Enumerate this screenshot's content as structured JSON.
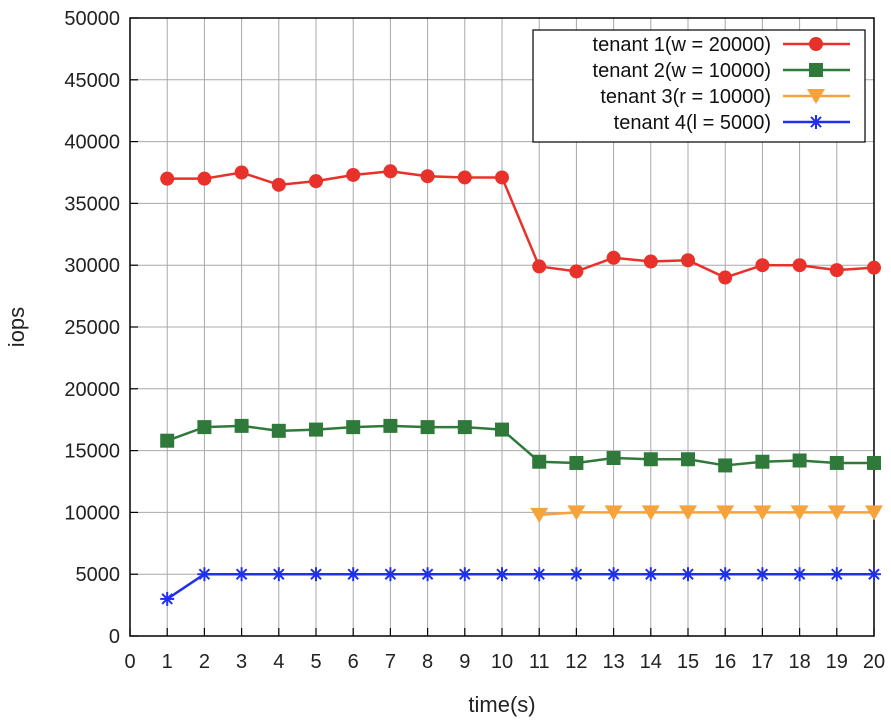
{
  "chart_data": {
    "type": "line",
    "title": "",
    "xlabel": "time(s)",
    "ylabel": "iops",
    "xlim": [
      0,
      20
    ],
    "ylim": [
      0,
      50000
    ],
    "xticks": [
      0,
      1,
      2,
      3,
      4,
      5,
      6,
      7,
      8,
      9,
      10,
      11,
      12,
      13,
      14,
      15,
      16,
      17,
      18,
      19,
      20
    ],
    "yticks": [
      0,
      5000,
      10000,
      15000,
      20000,
      25000,
      30000,
      35000,
      40000,
      45000,
      50000
    ],
    "grid": true,
    "legend_position": "top-right",
    "series": [
      {
        "name": "tenant 1(w = 20000)",
        "color": "#e8312a",
        "marker": "circle",
        "x": [
          1,
          2,
          3,
          4,
          5,
          6,
          7,
          8,
          9,
          10,
          11,
          12,
          13,
          14,
          15,
          16,
          17,
          18,
          19,
          20
        ],
        "values": [
          37000,
          37000,
          37500,
          36500,
          36800,
          37300,
          37600,
          37200,
          37100,
          37100,
          29900,
          29500,
          30600,
          30300,
          30400,
          29000,
          30000,
          30000,
          29600,
          29800
        ]
      },
      {
        "name": "tenant 2(w = 10000)",
        "color": "#2f7a3a",
        "marker": "square",
        "x": [
          1,
          2,
          3,
          4,
          5,
          6,
          7,
          8,
          9,
          10,
          11,
          12,
          13,
          14,
          15,
          16,
          17,
          18,
          19,
          20
        ],
        "values": [
          15800,
          16900,
          17000,
          16600,
          16700,
          16900,
          17000,
          16900,
          16900,
          16700,
          14100,
          14000,
          14400,
          14300,
          14300,
          13800,
          14100,
          14200,
          14000,
          14000
        ]
      },
      {
        "name": "tenant 3(r = 10000)",
        "color": "#f5a33a",
        "marker": "triangle-down",
        "x": [
          11,
          12,
          13,
          14,
          15,
          16,
          17,
          18,
          19,
          20
        ],
        "values": [
          9800,
          10000,
          10000,
          10000,
          10000,
          10000,
          10000,
          10000,
          10000,
          10000
        ]
      },
      {
        "name": "tenant 4(l = 5000)",
        "color": "#2030ee",
        "marker": "asterisk",
        "x": [
          1,
          2,
          3,
          4,
          5,
          6,
          7,
          8,
          9,
          10,
          11,
          12,
          13,
          14,
          15,
          16,
          17,
          18,
          19,
          20
        ],
        "values": [
          3000,
          5000,
          5000,
          5000,
          5000,
          5000,
          5000,
          5000,
          5000,
          5000,
          5000,
          5000,
          5000,
          5000,
          5000,
          5000,
          5000,
          5000,
          5000,
          5000
        ]
      }
    ]
  }
}
